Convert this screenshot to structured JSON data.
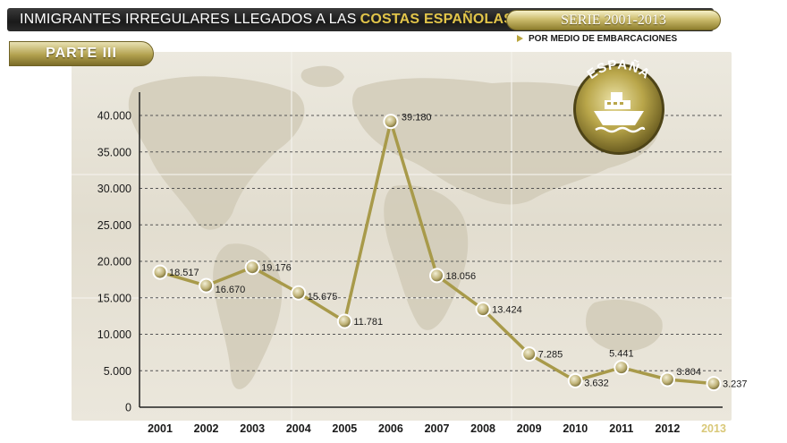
{
  "header": {
    "title_main": "INMIGRANTES IRREGULARES LLEGADOS A LAS",
    "title_accent": "COSTAS  ESPAÑOLAS",
    "series": "SERIE 2001-2013",
    "subtitle": "POR MEDIO DE EMBARCACIONES",
    "part": "PARTE  III"
  },
  "badge": {
    "text": "ESPAÑA",
    "icon": "ship-icon"
  },
  "colors": {
    "line": "#a89a4a",
    "marker": "#c9bd7a",
    "grid": "#555555",
    "accent": "#e2c54a"
  },
  "chart_data": {
    "type": "line",
    "title": "INMIGRANTES IRREGULARES LLEGADOS A LAS COSTAS ESPAÑOLAS",
    "categories": [
      "2001",
      "2002",
      "2003",
      "2004",
      "2005",
      "2006",
      "2007",
      "2008",
      "2009",
      "2010",
      "2011",
      "2012",
      "2013"
    ],
    "values": [
      18517,
      16670,
      19176,
      15675,
      11781,
      39180,
      18056,
      13424,
      7285,
      3632,
      5441,
      3804,
      3237
    ],
    "value_labels": [
      "18.517",
      "16.670",
      "19.176",
      "15.675",
      "11.781",
      "39.180",
      "18.056",
      "13.424",
      "7.285",
      "3.632",
      "5.441",
      "3.804",
      "3.237"
    ],
    "y_ticks": [
      0,
      5000,
      10000,
      15000,
      20000,
      25000,
      30000,
      35000,
      40000
    ],
    "y_tick_labels": [
      "0",
      "5.000",
      "10.000",
      "15.000",
      "20.000",
      "25.000",
      "30.000",
      "35.000",
      "40.000"
    ],
    "ylim": [
      0,
      40000
    ],
    "grid": true,
    "xlabel": "",
    "ylabel": ""
  }
}
